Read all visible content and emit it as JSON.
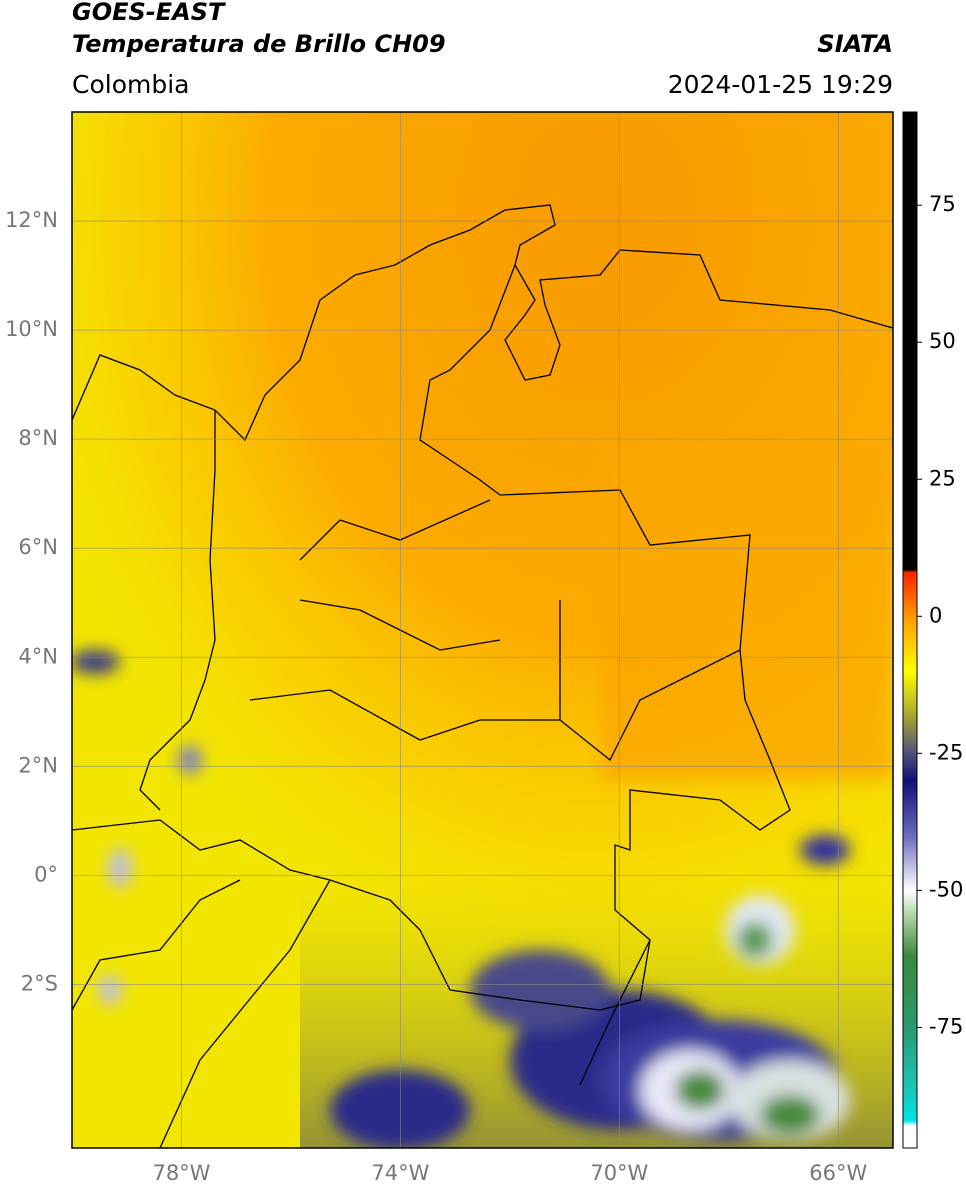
{
  "header": {
    "title": "GOES-EAST",
    "subtitle": "Temperatura de Brillo CH09",
    "source": "SIATA",
    "region": "Colombia",
    "datetime": "2024-01-25 19:29"
  },
  "map": {
    "lon_range": [
      -80,
      -65
    ],
    "lat_range": [
      -5,
      14
    ],
    "lat_ticks": [
      {
        "value": 12,
        "label": "12°N"
      },
      {
        "value": 10,
        "label": "10°N"
      },
      {
        "value": 8,
        "label": "8°N"
      },
      {
        "value": 6,
        "label": "6°N"
      },
      {
        "value": 4,
        "label": "4°N"
      },
      {
        "value": 2,
        "label": "2°N"
      },
      {
        "value": 0,
        "label": "0°"
      },
      {
        "value": -2,
        "label": "2°S"
      }
    ],
    "lon_ticks": [
      {
        "value": -78,
        "label": "78°W"
      },
      {
        "value": -74,
        "label": "74°W"
      },
      {
        "value": -70,
        "label": "70°W"
      },
      {
        "value": -66,
        "label": "66°W"
      }
    ]
  },
  "colorbar": {
    "range": [
      -97,
      92
    ],
    "ticks": [
      75,
      50,
      25,
      0,
      -25,
      -50,
      -75
    ],
    "stops": [
      {
        "value": -97,
        "color": "#ffffff"
      },
      {
        "value": -93,
        "color": "#ffffff"
      },
      {
        "value": -92,
        "color": "#00e5e5"
      },
      {
        "value": -85,
        "color": "#1fc0b0"
      },
      {
        "value": -75,
        "color": "#2a9a70"
      },
      {
        "value": -62,
        "color": "#3a8a3a"
      },
      {
        "value": -55,
        "color": "#a8d0a0"
      },
      {
        "value": -50,
        "color": "#ffffff"
      },
      {
        "value": -40,
        "color": "#6a6ac0"
      },
      {
        "value": -30,
        "color": "#10107a"
      },
      {
        "value": -25,
        "color": "#50507a"
      },
      {
        "value": -18,
        "color": "#a8a830"
      },
      {
        "value": -10,
        "color": "#ffff00"
      },
      {
        "value": 0,
        "color": "#ff9900"
      },
      {
        "value": 8,
        "color": "#ff2200"
      },
      {
        "value": 8.5,
        "color": "#000000"
      },
      {
        "value": 92,
        "color": "#000000"
      }
    ]
  }
}
